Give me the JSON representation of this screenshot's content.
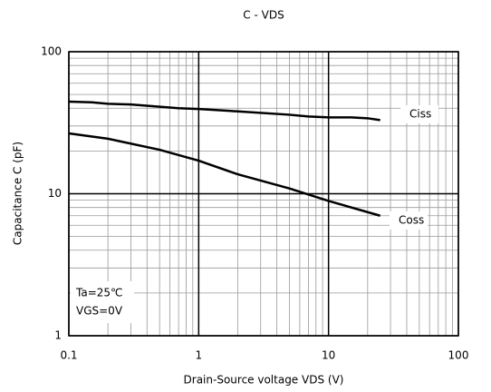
{
  "chart_data": {
    "type": "line",
    "title": "C - VDS",
    "xlabel": "Drain-Source voltage  VDS (V)",
    "ylabel": "Capacitance  C (pF)",
    "annotations": [
      "Ta=25℃",
      "VGS=0V"
    ],
    "xscale": "log",
    "yscale": "log",
    "grid": true,
    "xlim": [
      0.1,
      100
    ],
    "xticks": [
      0.1,
      1,
      10,
      100
    ],
    "ylim": [
      1,
      100
    ],
    "yticks": [
      1,
      10,
      100
    ],
    "series": [
      {
        "name": "Ciss",
        "color": "#000000",
        "x": [
          0.1,
          0.15,
          0.2,
          0.3,
          0.5,
          0.7,
          1,
          2,
          5,
          7,
          10,
          15,
          20,
          25
        ],
        "values": [
          44.5,
          44,
          43,
          42.5,
          41,
          40,
          39.5,
          38,
          36,
          35,
          34.5,
          34.5,
          34,
          33
        ]
      },
      {
        "name": "Coss",
        "color": "#000000",
        "x": [
          0.1,
          0.2,
          0.5,
          1,
          2,
          5,
          10,
          25
        ],
        "values": [
          26.6,
          24.4,
          20.4,
          17.1,
          13.7,
          10.9,
          8.9,
          7.0
        ]
      }
    ]
  }
}
